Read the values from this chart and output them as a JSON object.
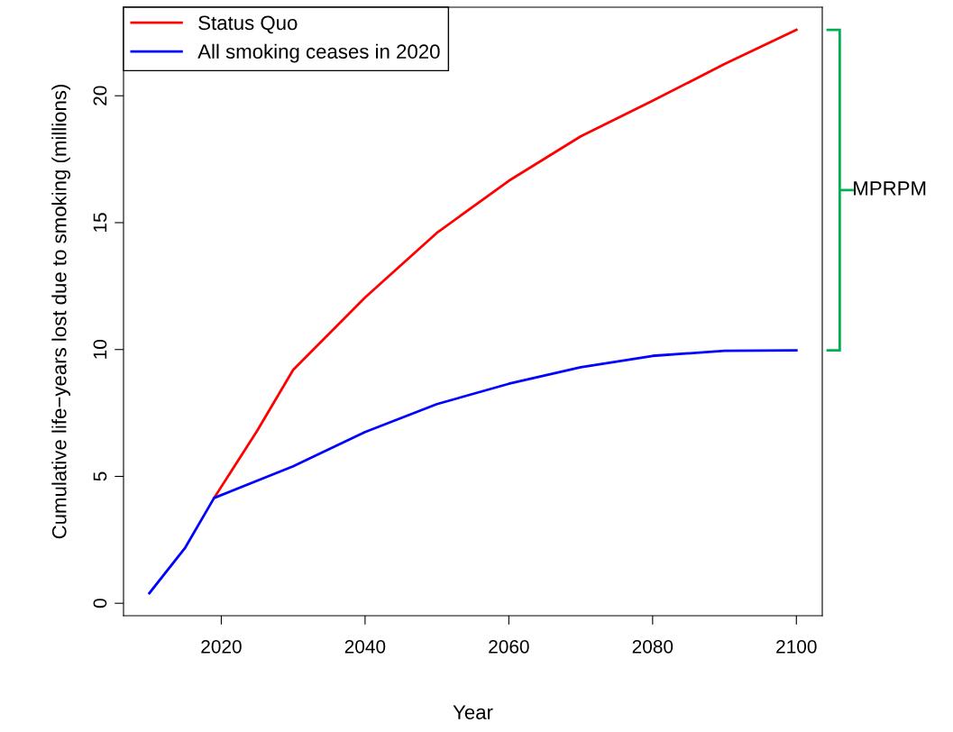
{
  "chart_data": {
    "type": "line",
    "xlabel": "Year",
    "ylabel": "Cumulative life−years lost due to smoking (millions)",
    "xlim": [
      2006.4,
      2103.6
    ],
    "ylim": [
      -0.49,
      23.49
    ],
    "xticks": [
      2020,
      2040,
      2060,
      2080,
      2100
    ],
    "yticks": [
      0,
      5,
      10,
      15,
      20
    ],
    "series": [
      {
        "name": "Status Quo",
        "color": "#ff0000",
        "x": [
          2019,
          2025,
          2030,
          2040,
          2050,
          2060,
          2070,
          2080,
          2090,
          2100
        ],
        "values": [
          4.15,
          6.8,
          9.2,
          12.05,
          14.6,
          16.65,
          18.4,
          19.8,
          21.25,
          22.6
        ]
      },
      {
        "name": "All smoking ceases in 2020",
        "color": "#0000ff",
        "x": [
          2010,
          2015,
          2019,
          2030,
          2040,
          2050,
          2060,
          2070,
          2080,
          2090,
          2100
        ],
        "values": [
          0.4,
          2.2,
          4.15,
          5.4,
          6.75,
          7.85,
          8.65,
          9.3,
          9.75,
          9.95,
          9.97
        ]
      }
    ],
    "annotations": [
      "MPRPM"
    ],
    "legend": "top left",
    "grid": false,
    "marker": "none",
    "line_style": "solid"
  }
}
